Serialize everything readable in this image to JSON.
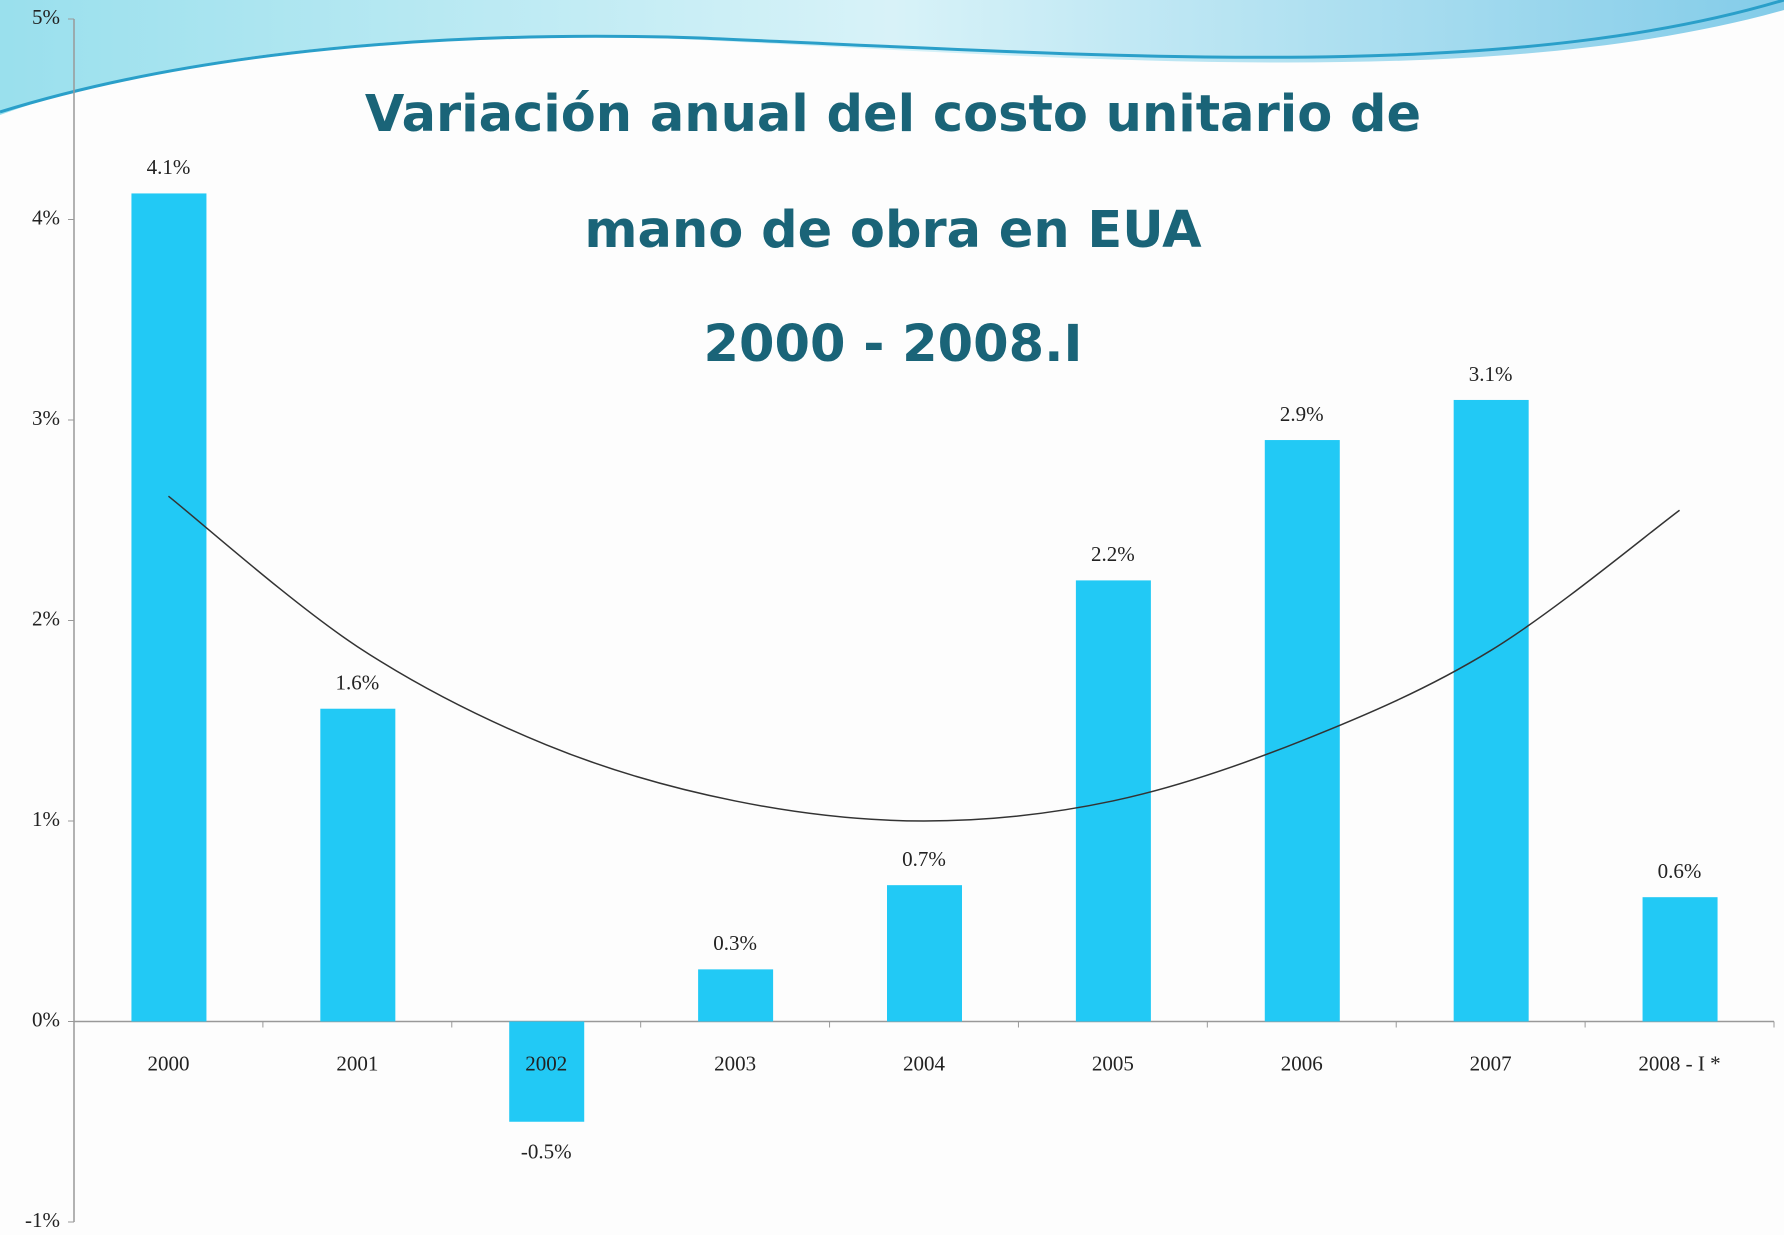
{
  "chart_data": {
    "type": "bar",
    "title": [
      "Variación anual del costo unitario de",
      "mano de obra en EUA"
    ],
    "subtitle": "2000 - 2008.I",
    "categories": [
      "2000",
      "2001",
      "2002",
      "2003",
      "2004",
      "2005",
      "2006",
      "2007",
      "2008 - I *"
    ],
    "values": [
      4.13,
      1.56,
      -0.5,
      0.26,
      0.68,
      2.2,
      2.9,
      3.1,
      0.62
    ],
    "value_labels": [
      "4.1%",
      "1.6%",
      "-0.5%",
      "0.3%",
      "0.7%",
      "2.2%",
      "2.9%",
      "3.1%",
      "0.6%"
    ],
    "color": "#22c9f5",
    "trend": {
      "values": [
        2.62,
        1.87,
        1.38,
        1.1,
        1.0,
        1.1,
        1.4,
        1.85,
        2.55
      ],
      "color": "#333333"
    },
    "ylim": [
      -1,
      5
    ],
    "yticks": [
      {
        "value": -1,
        "label": "-1%"
      },
      {
        "value": 0,
        "label": "0%"
      },
      {
        "value": 1,
        "label": "1%"
      },
      {
        "value": 2,
        "label": "2%"
      },
      {
        "value": 3,
        "label": "3%"
      },
      {
        "value": 4,
        "label": "4%"
      },
      {
        "value": 5,
        "label": "5%"
      }
    ],
    "grid": false
  }
}
